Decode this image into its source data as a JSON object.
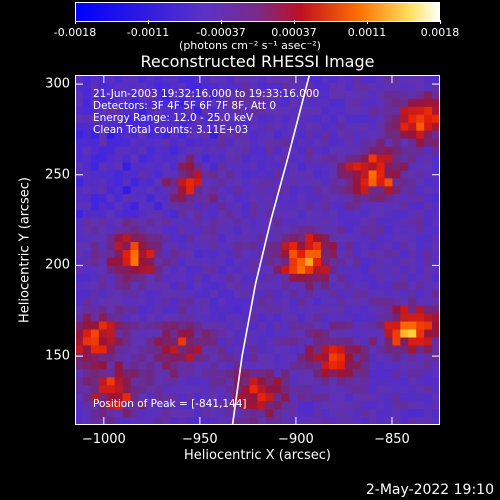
{
  "colorbar": {
    "ticks": [
      "-0.0018",
      "-0.0011",
      "-0.00037",
      "0.00037",
      "0.0011",
      "0.0018"
    ],
    "units": "(photons cm⁻² s⁻¹ asec⁻²)",
    "colors": [
      "#0000ff",
      "#5a2fd0",
      "#6a3fa0",
      "#7a2060",
      "#ff2a00",
      "#ffc000",
      "#ffffff"
    ]
  },
  "chart_data": {
    "type": "heatmap",
    "title": "Reconstructed RHESSI Image",
    "xlabel": "Heliocentric X (arcsec)",
    "ylabel": "Heliocentric Y (arcsec)",
    "xlim": [
      -1015,
      -825
    ],
    "ylim": [
      112,
      305
    ],
    "x_ticks": [
      "−1000",
      "−950",
      "−900",
      "−850"
    ],
    "y_ticks": [
      "150",
      "200",
      "250",
      "300"
    ],
    "x_tick_values": [
      -1000,
      -950,
      -900,
      -850
    ],
    "y_tick_values": [
      150,
      200,
      250,
      300
    ],
    "value_range": [
      -0.0018,
      0.0018
    ],
    "hot_regions": [
      {
        "x": -895,
        "y": 205,
        "level": 0.0016
      },
      {
        "x": -860,
        "y": 250,
        "level": 0.0014
      },
      {
        "x": -985,
        "y": 205,
        "level": 0.0012
      },
      {
        "x": -955,
        "y": 245,
        "level": 0.001
      },
      {
        "x": -840,
        "y": 165,
        "level": 0.0015
      },
      {
        "x": -880,
        "y": 150,
        "level": 0.0011
      },
      {
        "x": -1005,
        "y": 160,
        "level": 0.0012
      },
      {
        "x": -960,
        "y": 155,
        "level": 0.0009
      },
      {
        "x": -835,
        "y": 280,
        "level": 0.0012
      },
      {
        "x": -995,
        "y": 130,
        "level": 0.001
      },
      {
        "x": -920,
        "y": 130,
        "level": 0.0011
      }
    ],
    "limb_curve": [
      [
        -933,
        112
      ],
      [
        -928,
        150
      ],
      [
        -921,
        190
      ],
      [
        -913,
        225
      ],
      [
        -904,
        260
      ],
      [
        -893,
        305
      ]
    ],
    "annotations": [
      "21-Jun-2003 19:32:16.000 to 19:33:16.000",
      "Detectors: 3F 4F 5F 6F 7F 8F, Att 0",
      "Energy Range: 12.0 - 25.0 keV",
      "Clean     Total counts: 3.11E+03"
    ],
    "peak_label": "Position of Peak = [-841,144]"
  },
  "footer": "2-May-2022 19:10"
}
